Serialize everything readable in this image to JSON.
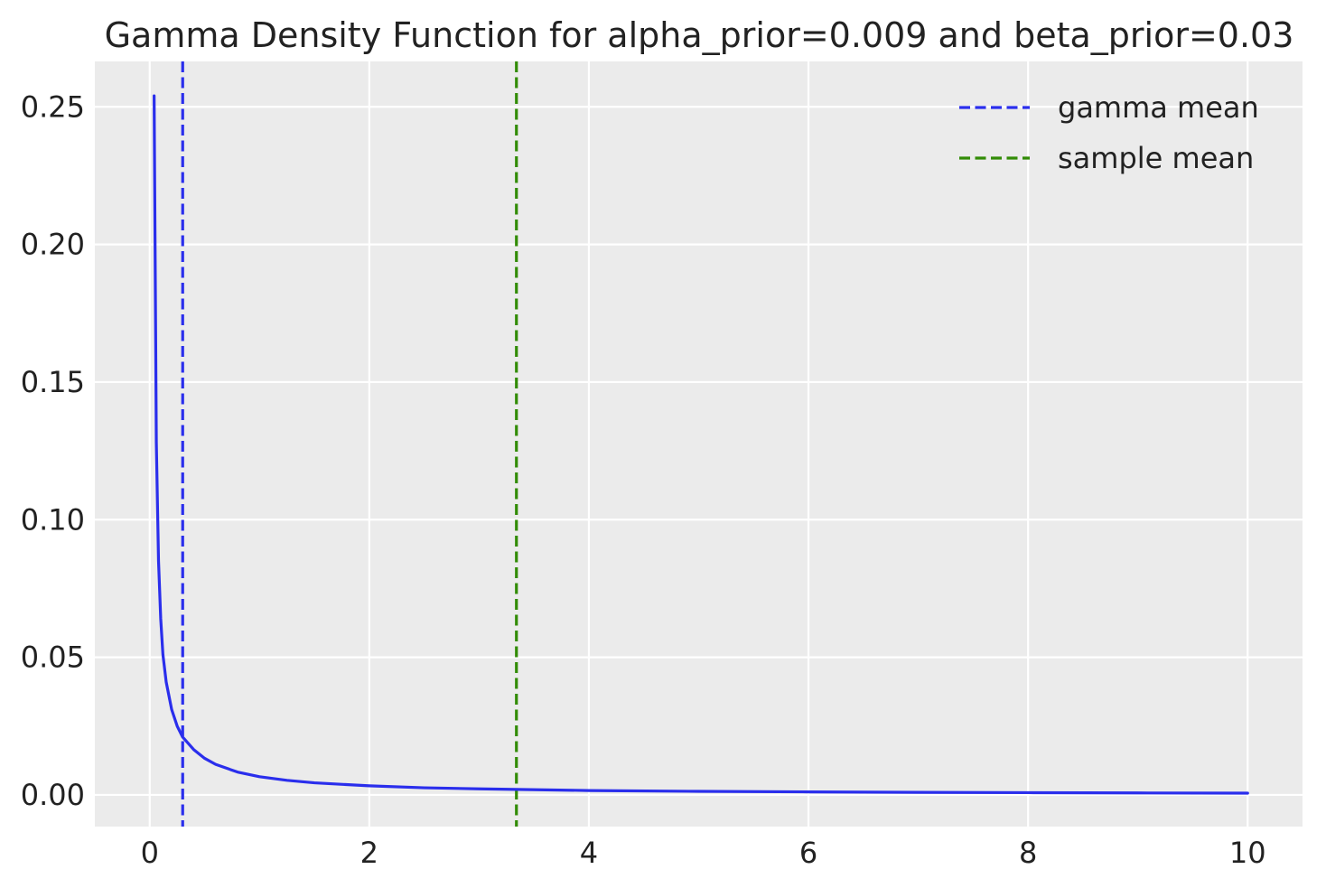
{
  "chart_data": {
    "type": "line",
    "title": "Gamma Density Function for alpha_prior=0.009 and beta_prior=0.03",
    "xlabel": "",
    "ylabel": "",
    "xlim": [
      -0.5,
      10.5
    ],
    "ylim": [
      -0.0115,
      0.2665
    ],
    "grid": true,
    "legend_placement": "top-right",
    "x_ticks": [
      0,
      2,
      4,
      6,
      8,
      10
    ],
    "x_tick_labels": [
      "0",
      "2",
      "4",
      "6",
      "8",
      "10"
    ],
    "y_ticks": [
      0.0,
      0.05,
      0.1,
      0.15,
      0.2,
      0.25
    ],
    "y_tick_labels": [
      "0.00",
      "0.05",
      "0.10",
      "0.15",
      "0.20",
      "0.25"
    ],
    "series": [
      {
        "type": "line",
        "color": "#2a2eec",
        "x": [
          0.04,
          0.06,
          0.08,
          0.1,
          0.12,
          0.15,
          0.2,
          0.25,
          0.3,
          0.4,
          0.5,
          0.6,
          0.8,
          1.0,
          1.25,
          1.5,
          2.0,
          2.5,
          3.0,
          3.34,
          4.0,
          5.0,
          6.0,
          7.0,
          8.0,
          9.0,
          10.0
        ],
        "y": [
          0.254,
          0.128,
          0.085,
          0.064,
          0.051,
          0.041,
          0.031,
          0.025,
          0.021,
          0.0165,
          0.0133,
          0.0111,
          0.0083,
          0.0066,
          0.0053,
          0.0044,
          0.0033,
          0.0026,
          0.0022,
          0.002,
          0.0016,
          0.0013,
          0.0011,
          0.00094,
          0.00082,
          0.00072,
          0.00065
        ]
      }
    ],
    "vlines": [
      {
        "name": "gamma mean",
        "x": 0.3,
        "color": "#2a2eec",
        "style": "dashed"
      },
      {
        "name": "sample mean",
        "x": 3.34,
        "color": "#328c06",
        "style": "dashed"
      }
    ],
    "colors": {
      "plot_background": "#ebebeb",
      "grid": "#ffffff",
      "text": "#222222"
    }
  }
}
